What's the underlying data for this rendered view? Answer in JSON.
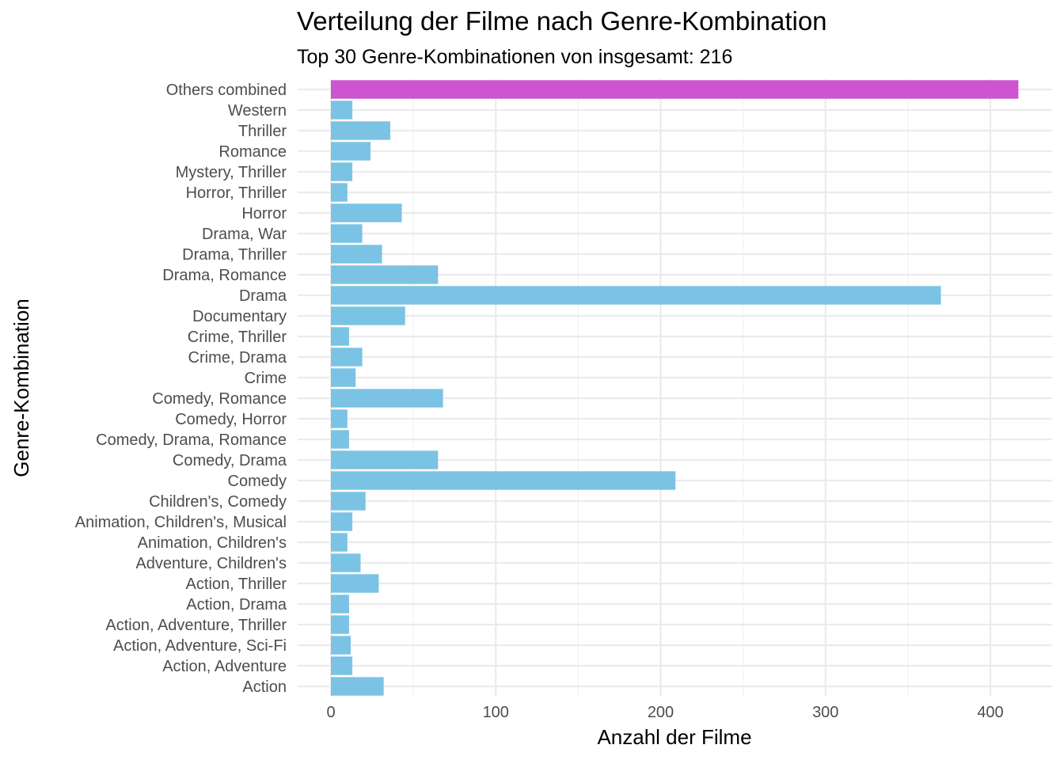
{
  "chart_data": {
    "type": "bar",
    "orientation": "horizontal",
    "title": "Verteilung der Filme nach Genre-Kombination",
    "subtitle": "Top 30 Genre-Kombinationen von insgesamt:  216",
    "xlabel": "Anzahl der Filme",
    "ylabel": "Genre-Kombination",
    "xlim": [
      -20,
      437
    ],
    "xticks": [
      0,
      100,
      200,
      300,
      400
    ],
    "grid": true,
    "categories": [
      "Others combined",
      "Western",
      "Thriller",
      "Romance",
      "Mystery, Thriller",
      "Horror, Thriller",
      "Horror",
      "Drama, War",
      "Drama, Thriller",
      "Drama, Romance",
      "Drama",
      "Documentary",
      "Crime, Thriller",
      "Crime, Drama",
      "Crime",
      "Comedy, Romance",
      "Comedy, Horror",
      "Comedy, Drama, Romance",
      "Comedy, Drama",
      "Comedy",
      "Children's, Comedy",
      "Animation, Children's, Musical",
      "Animation, Children's",
      "Adventure, Children's",
      "Action, Thriller",
      "Action, Drama",
      "Action, Adventure, Thriller",
      "Action, Adventure, Sci-Fi",
      "Action, Adventure",
      "Action"
    ],
    "values": [
      417,
      13,
      36,
      24,
      13,
      10,
      43,
      19,
      31,
      65,
      370,
      45,
      11,
      19,
      15,
      68,
      10,
      11,
      65,
      209,
      21,
      13,
      10,
      18,
      29,
      11,
      11,
      12,
      13,
      32
    ],
    "colors": {
      "bar": "#7BC3E4",
      "highlight": "#CD55D1",
      "highlight_category": "Others combined",
      "grid_major": "#EBEBEB",
      "grid_minor": "#F2F2F2"
    }
  }
}
